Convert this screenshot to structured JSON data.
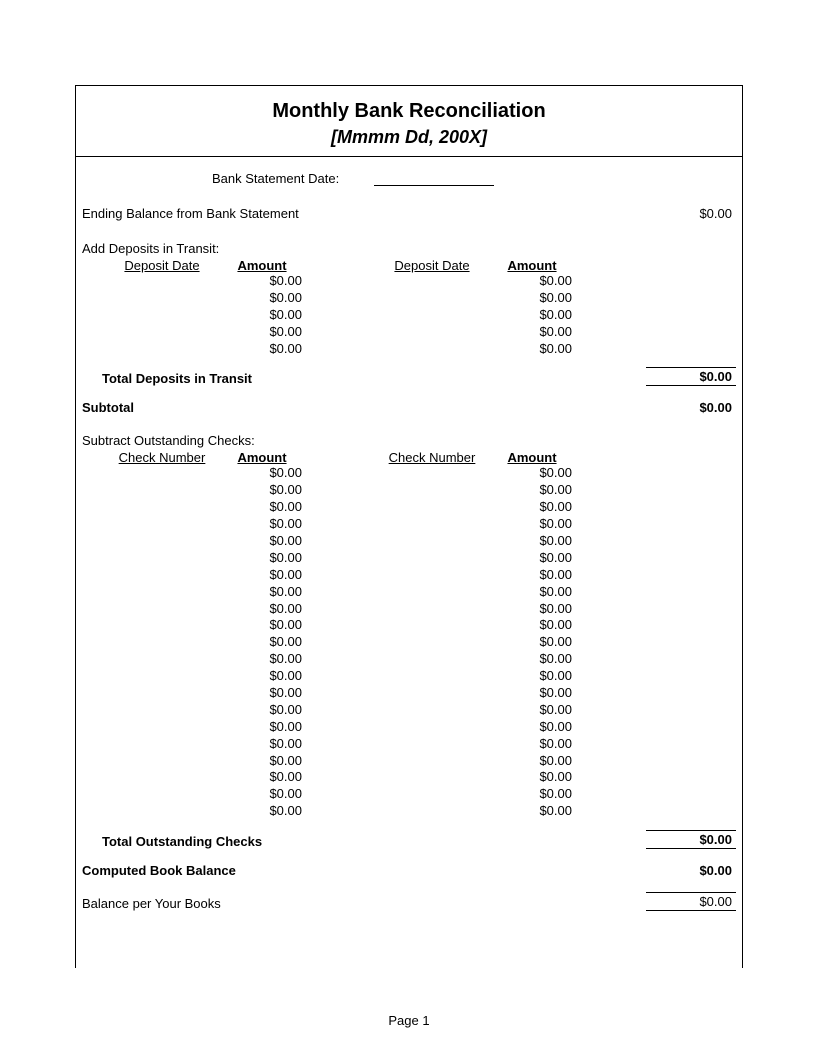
{
  "title": "Monthly Bank Reconciliation",
  "subtitle": "[Mmmm Dd, 200X]",
  "stmtDateLabel": "Bank Statement Date:",
  "endingBalanceLabel": "Ending Balance from Bank Statement",
  "endingBalanceValue": "$0.00",
  "deposits": {
    "sectionLabel": "Add Deposits in Transit:",
    "headerLeft": "Deposit Date",
    "headerAmount": "Amount",
    "rows": [
      "$0.00",
      "$0.00",
      "$0.00",
      "$0.00",
      "$0.00"
    ],
    "totalLabel": "Total Deposits in Transit",
    "totalValue": "$0.00"
  },
  "subtotalLabel": "Subtotal",
  "subtotalValue": "$0.00",
  "checks": {
    "sectionLabel": "Subtract Outstanding Checks:",
    "headerLeft": "Check Number",
    "headerAmount": "Amount",
    "rows": [
      "$0.00",
      "$0.00",
      "$0.00",
      "$0.00",
      "$0.00",
      "$0.00",
      "$0.00",
      "$0.00",
      "$0.00",
      "$0.00",
      "$0.00",
      "$0.00",
      "$0.00",
      "$0.00",
      "$0.00",
      "$0.00",
      "$0.00",
      "$0.00",
      "$0.00",
      "$0.00",
      "$0.00"
    ],
    "totalLabel": "Total Outstanding Checks",
    "totalValue": "$0.00"
  },
  "computedLabel": "Computed Book Balance",
  "computedValue": "$0.00",
  "booksLabel": "Balance per Your Books",
  "booksValue": "$0.00",
  "pageLabel": "Page 1",
  "colors": {
    "text": "#000000",
    "background": "#ffffff",
    "border": "#000000"
  },
  "fonts": {
    "body_pt": 10,
    "title_pt": 15,
    "subtitle_pt": 13
  }
}
